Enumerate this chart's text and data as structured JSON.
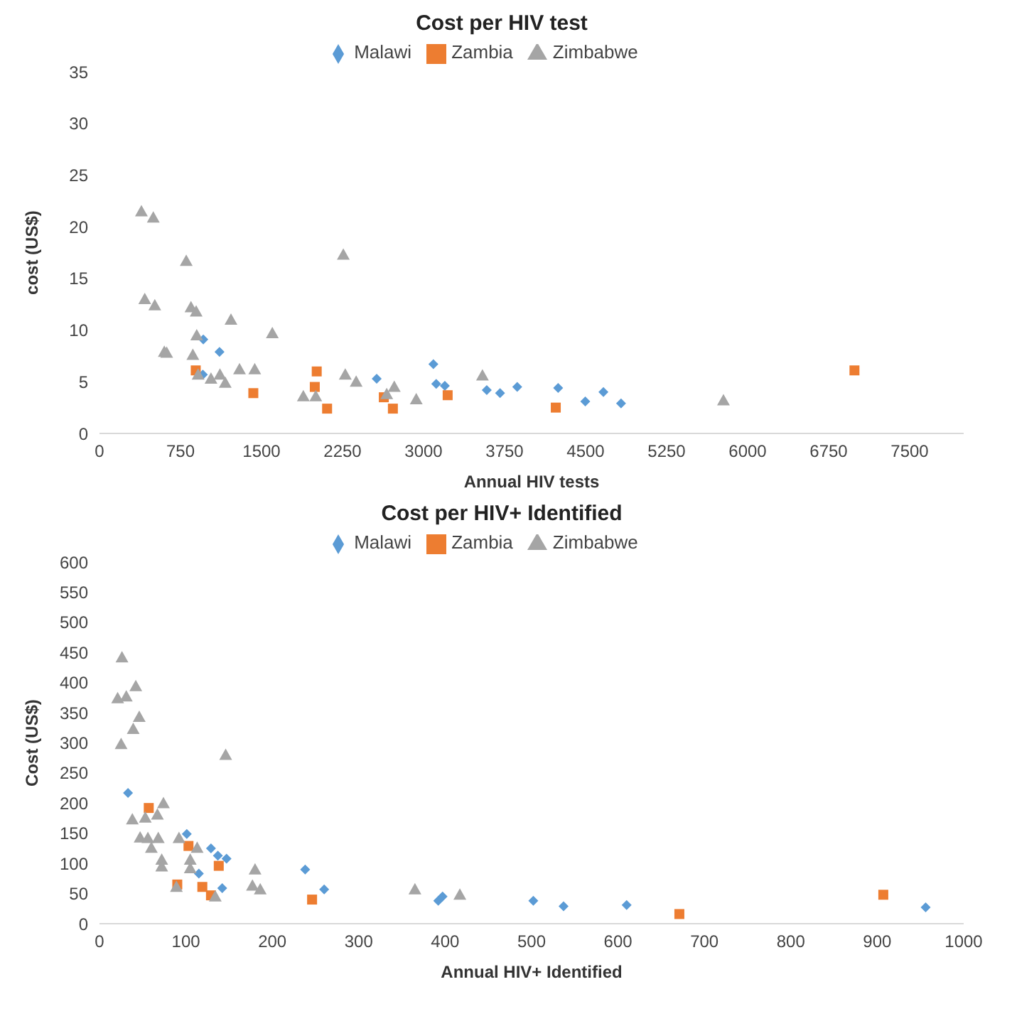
{
  "chart_data": [
    {
      "type": "scatter",
      "title": "Cost per HIV test",
      "xlabel": "Annual HIV tests",
      "ylabel": "cost (US$)",
      "xlim": [
        0,
        8000
      ],
      "xticks": [
        0,
        750,
        1500,
        2250,
        3000,
        3750,
        4500,
        5250,
        6000,
        6750,
        7500
      ],
      "ylim": [
        0,
        35
      ],
      "yticks": [
        0,
        5,
        10,
        15,
        20,
        25,
        30,
        35
      ],
      "grid": false,
      "legend": "top",
      "series": [
        {
          "name": "Malawi",
          "color": "#5b9bd5",
          "marker": "diamond",
          "x": [
            961,
            1111,
            957,
            2566,
            3091,
            3117,
            3197,
            3585,
            3708,
            3867,
            4246,
            4497,
            4665,
            4828
          ],
          "values": [
            9.1,
            7.9,
            5.7,
            5.3,
            6.7,
            4.8,
            4.6,
            4.2,
            3.9,
            4.5,
            4.4,
            3.1,
            4.0,
            2.9
          ]
        },
        {
          "name": "Zambia",
          "color": "#ed7d31",
          "marker": "square",
          "x": [
            891,
            1424,
            2011,
            1993,
            2107,
            2632,
            2716,
            3223,
            4224,
            6989
          ],
          "values": [
            6.1,
            3.9,
            6.0,
            4.5,
            2.4,
            3.5,
            2.4,
            3.7,
            2.5,
            6.1
          ]
        },
        {
          "name": "Zimbabwe",
          "color": "#a5a5a5",
          "marker": "triangle",
          "x": [
            388,
            498,
            803,
            419,
            512,
            847,
            895,
            1217,
            1600,
            900,
            600,
            622,
            864,
            1296,
            1437,
            913,
            1032,
            1115,
            1164,
            2257,
            2275,
            2376,
            1887,
            2002,
            2659,
            2729,
            2932,
            3545,
            5776
          ],
          "values": [
            21.5,
            20.9,
            16.7,
            13.0,
            12.4,
            12.2,
            11.8,
            11.0,
            9.7,
            9.5,
            7.9,
            7.8,
            7.6,
            6.2,
            6.2,
            5.7,
            5.3,
            5.7,
            4.9,
            17.3,
            5.7,
            5.0,
            3.6,
            3.6,
            3.8,
            4.5,
            3.3,
            5.6,
            3.2
          ]
        }
      ]
    },
    {
      "type": "scatter",
      "title": "Cost per HIV+ Identified",
      "xlabel": "Annual HIV+ Identified",
      "ylabel": "Cost (US$)",
      "xlim": [
        0,
        1000
      ],
      "xticks": [
        0,
        100,
        200,
        300,
        400,
        500,
        600,
        700,
        800,
        900,
        1000
      ],
      "ylim": [
        0,
        600
      ],
      "yticks": [
        0,
        50,
        100,
        150,
        200,
        250,
        300,
        350,
        400,
        450,
        500,
        550,
        600
      ],
      "grid": false,
      "legend": "top",
      "series": [
        {
          "name": "Malawi",
          "color": "#5b9bd5",
          "marker": "diamond",
          "x": [
            33,
            101,
            129,
            137,
            147,
            115,
            142,
            238,
            260,
            392,
            397,
            502,
            537,
            610,
            956
          ],
          "values": [
            217,
            149,
            125,
            113,
            108,
            83,
            59,
            90,
            57,
            38,
            45,
            38,
            29,
            31,
            27
          ]
        },
        {
          "name": "Zambia",
          "color": "#ed7d31",
          "marker": "square",
          "x": [
            57,
            103,
            138,
            90,
            119,
            129,
            246,
            671,
            907
          ],
          "values": [
            192,
            129,
            96,
            65,
            61,
            47,
            40,
            16,
            48
          ]
        },
        {
          "name": "Zimbabwe",
          "color": "#a5a5a5",
          "marker": "triangle",
          "x": [
            26,
            21,
            31,
            42,
            46,
            39,
            25,
            146,
            74,
            38,
            53,
            67,
            47,
            56,
            68,
            60,
            92,
            72,
            72,
            105,
            105,
            113,
            89,
            134,
            180,
            177,
            186,
            365,
            417
          ],
          "values": [
            442,
            374,
            377,
            394,
            343,
            323,
            298,
            280,
            200,
            173,
            176,
            181,
            143,
            142,
            142,
            126,
            142,
            106,
            95,
            106,
            92,
            126,
            61,
            45,
            90,
            63,
            57,
            57,
            48
          ]
        }
      ]
    }
  ]
}
